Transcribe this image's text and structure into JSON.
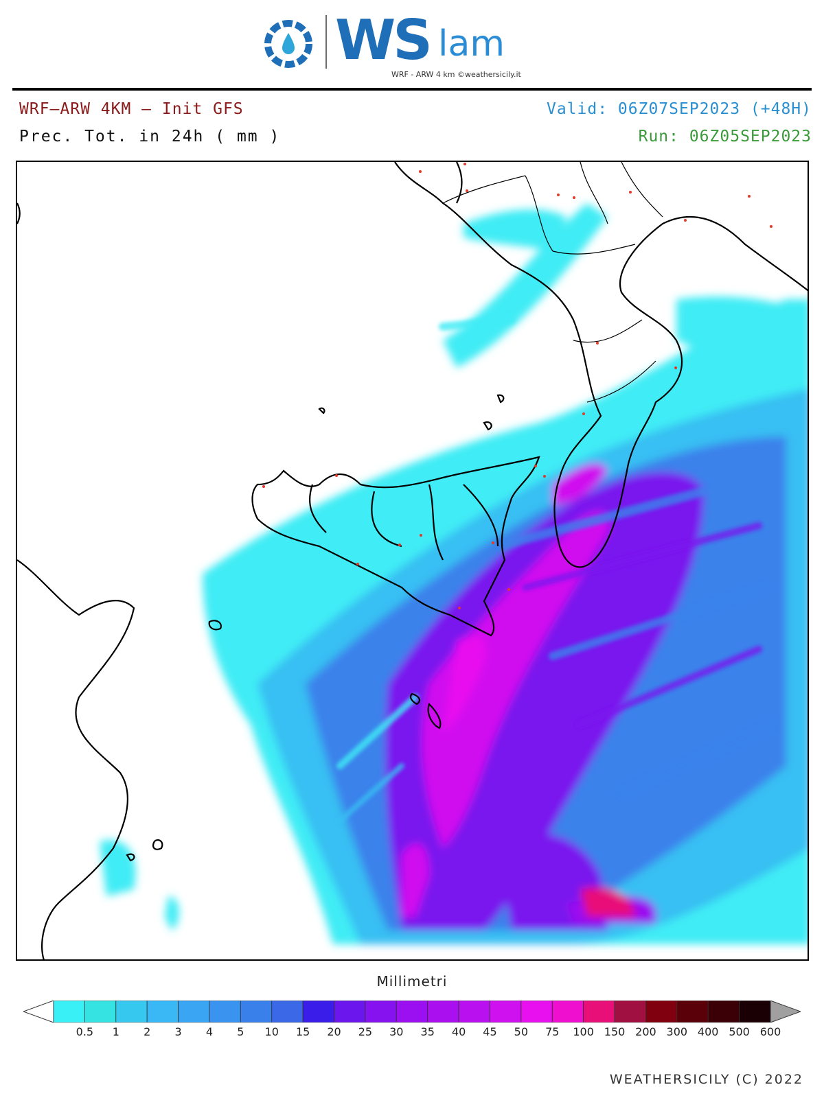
{
  "header": {
    "logo_text": "WS",
    "logo_suffix": "lam",
    "logo_subtitle": "WRF - ARW 4 km ©weathersicily.it",
    "model_line": "WRF–ARW 4KM – Init GFS",
    "field_line": "Prec. Tot. in 24h ( mm )",
    "valid_line": "Valid: 06Z07SEP2023 (+48H)",
    "run_line": "Run: 06Z05SEP2023"
  },
  "colors": {
    "model_line": "#8b1a1a",
    "valid_line": "#2a8fd0",
    "run_line": "#3a9a3a",
    "coastline": "#000000",
    "city_marker": "#e23a2a"
  },
  "map": {
    "field": "precipitation_24h",
    "region": "Sicily / Calabria / Ionian Sea",
    "max_area": "southeast of Sicily, south of Malta"
  },
  "legend": {
    "title": "Millimetri",
    "ticks": [
      "0.5",
      "1",
      "2",
      "3",
      "4",
      "5",
      "10",
      "15",
      "20",
      "25",
      "30",
      "35",
      "40",
      "45",
      "50",
      "75",
      "100",
      "150",
      "200",
      "300",
      "400",
      "500",
      "600"
    ],
    "colors": [
      "#ffffff",
      "#39f0f7",
      "#36e3e3",
      "#37c8f0",
      "#3ab8f5",
      "#3aa5f2",
      "#3a93ef",
      "#3a80ea",
      "#3b68e6",
      "#3a1de8",
      "#6a16ec",
      "#8512ef",
      "#9a10f0",
      "#aa10ef",
      "#b810ef",
      "#cf10ef",
      "#e810ef",
      "#ef10cf",
      "#e81078",
      "#a01040",
      "#800010",
      "#5a0008",
      "#3a0005",
      "#1a0004",
      "#a0a0a0"
    ]
  },
  "footer": {
    "copyright": "WEATHERSICILY (C) 2022"
  }
}
